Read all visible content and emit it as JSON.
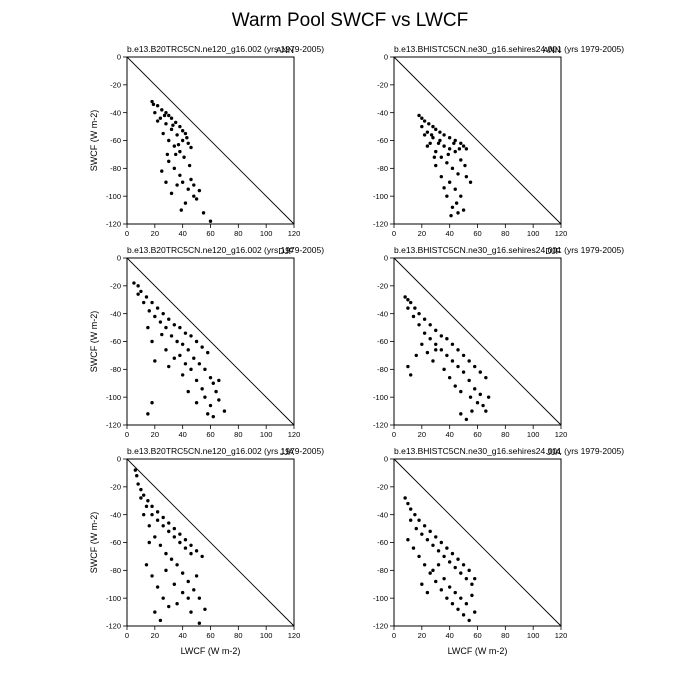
{
  "figure": {
    "title": "Warm Pool SWCF vs LWCF"
  },
  "chart_data": [
    {
      "type": "scatter",
      "title": "b.e13.B20TRC5CN.ne120_g16.002 (yrs 1979-2005)",
      "season": "ANN",
      "xlabel": "",
      "ylabel": "SWCF (W m-2)",
      "xlim": [
        0,
        120
      ],
      "ylim": [
        -120,
        0
      ],
      "xticks": [
        "0",
        "20",
        "40",
        "60",
        "80",
        "100",
        "120"
      ],
      "yticks": [
        "0",
        "-20",
        "-40",
        "-60",
        "-80",
        "-100",
        "-120"
      ],
      "reference_line": "y = -x",
      "points": [
        [
          18,
          -32
        ],
        [
          22,
          -35
        ],
        [
          25,
          -38
        ],
        [
          28,
          -40
        ],
        [
          30,
          -42
        ],
        [
          32,
          -44
        ],
        [
          35,
          -47
        ],
        [
          38,
          -50
        ],
        [
          40,
          -53
        ],
        [
          42,
          -55
        ],
        [
          20,
          -40
        ],
        [
          24,
          -44
        ],
        [
          28,
          -48
        ],
        [
          32,
          -52
        ],
        [
          36,
          -56
        ],
        [
          40,
          -60
        ],
        [
          44,
          -62
        ],
        [
          46,
          -65
        ],
        [
          26,
          -55
        ],
        [
          30,
          -60
        ],
        [
          34,
          -64
        ],
        [
          38,
          -68
        ],
        [
          30,
          -75
        ],
        [
          34,
          -80
        ],
        [
          38,
          -85
        ],
        [
          40,
          -90
        ],
        [
          44,
          -95
        ],
        [
          48,
          -100
        ],
        [
          36,
          -92
        ],
        [
          42,
          -105
        ],
        [
          32,
          -98
        ],
        [
          46,
          -88
        ],
        [
          50,
          -102
        ],
        [
          55,
          -112
        ],
        [
          60,
          -118
        ],
        [
          25,
          -82
        ],
        [
          28,
          -90
        ],
        [
          35,
          -70
        ],
        [
          45,
          -78
        ],
        [
          41,
          -72
        ],
        [
          22,
          -46
        ],
        [
          19,
          -34
        ],
        [
          27,
          -42
        ],
        [
          33,
          -49
        ],
        [
          43,
          -58
        ],
        [
          37,
          -63
        ],
        [
          29,
          -70
        ],
        [
          48,
          -92
        ],
        [
          52,
          -96
        ],
        [
          39,
          -110
        ]
      ]
    },
    {
      "type": "scatter",
      "title": "b.e13.BHISTC5CN.ne30_g16.sehires24.001 (yrs 1979-2005)",
      "season": "ANN",
      "xlabel": "",
      "ylabel": "",
      "xlim": [
        0,
        120
      ],
      "ylim": [
        -120,
        0
      ],
      "xticks": [
        "0",
        "20",
        "40",
        "60",
        "80",
        "100",
        "120"
      ],
      "yticks": [
        "0",
        "-20",
        "-40",
        "-60",
        "-80",
        "-100",
        "-120"
      ],
      "reference_line": "y = -x",
      "points": [
        [
          18,
          -42
        ],
        [
          20,
          -44
        ],
        [
          22,
          -46
        ],
        [
          25,
          -48
        ],
        [
          28,
          -50
        ],
        [
          30,
          -52
        ],
        [
          33,
          -54
        ],
        [
          36,
          -56
        ],
        [
          40,
          -58
        ],
        [
          44,
          -60
        ],
        [
          48,
          -62
        ],
        [
          50,
          -64
        ],
        [
          52,
          -66
        ],
        [
          20,
          -50
        ],
        [
          24,
          -54
        ],
        [
          28,
          -58
        ],
        [
          32,
          -62
        ],
        [
          36,
          -64
        ],
        [
          40,
          -66
        ],
        [
          44,
          -68
        ],
        [
          26,
          -62
        ],
        [
          30,
          -68
        ],
        [
          34,
          -72
        ],
        [
          38,
          -76
        ],
        [
          42,
          -80
        ],
        [
          46,
          -84
        ],
        [
          40,
          -90
        ],
        [
          44,
          -95
        ],
        [
          48,
          -100
        ],
        [
          42,
          -108
        ],
        [
          46,
          -112
        ],
        [
          50,
          -110
        ],
        [
          38,
          -100
        ],
        [
          34,
          -86
        ],
        [
          30,
          -78
        ],
        [
          24,
          -64
        ],
        [
          22,
          -56
        ],
        [
          48,
          -74
        ],
        [
          52,
          -86
        ],
        [
          55,
          -90
        ],
        [
          45,
          -105
        ],
        [
          41,
          -114
        ],
        [
          36,
          -94
        ],
        [
          29,
          -72
        ],
        [
          33,
          -60
        ],
        [
          47,
          -66
        ],
        [
          43,
          -62
        ],
        [
          27,
          -56
        ],
        [
          39,
          -70
        ],
        [
          51,
          -78
        ]
      ]
    },
    {
      "type": "scatter",
      "title": "b.e13.B20TRC5CN.ne120_g16.002 (yrs 1979-2005)",
      "season": "DJF",
      "xlabel": "",
      "ylabel": "SWCF (W m-2)",
      "xlim": [
        0,
        120
      ],
      "ylim": [
        -120,
        0
      ],
      "xticks": [
        "0",
        "20",
        "40",
        "60",
        "80",
        "100",
        "120"
      ],
      "yticks": [
        "0",
        "-20",
        "-40",
        "-60",
        "-80",
        "-100",
        "-120"
      ],
      "reference_line": "y = -x",
      "points": [
        [
          5,
          -18
        ],
        [
          8,
          -20
        ],
        [
          10,
          -24
        ],
        [
          14,
          -28
        ],
        [
          18,
          -32
        ],
        [
          22,
          -36
        ],
        [
          26,
          -40
        ],
        [
          30,
          -44
        ],
        [
          34,
          -48
        ],
        [
          38,
          -50
        ],
        [
          42,
          -54
        ],
        [
          46,
          -56
        ],
        [
          50,
          -60
        ],
        [
          54,
          -64
        ],
        [
          58,
          -68
        ],
        [
          8,
          -26
        ],
        [
          12,
          -32
        ],
        [
          16,
          -38
        ],
        [
          20,
          -42
        ],
        [
          24,
          -46
        ],
        [
          28,
          -50
        ],
        [
          32,
          -56
        ],
        [
          36,
          -60
        ],
        [
          40,
          -62
        ],
        [
          44,
          -66
        ],
        [
          48,
          -72
        ],
        [
          52,
          -76
        ],
        [
          56,
          -80
        ],
        [
          60,
          -86
        ],
        [
          62,
          -90
        ],
        [
          64,
          -96
        ],
        [
          66,
          -102
        ],
        [
          60,
          -106
        ],
        [
          58,
          -112
        ],
        [
          62,
          -114
        ],
        [
          56,
          -100
        ],
        [
          54,
          -94
        ],
        [
          50,
          -88
        ],
        [
          46,
          -80
        ],
        [
          42,
          -76
        ],
        [
          38,
          -70
        ],
        [
          15,
          -50
        ],
        [
          18,
          -60
        ],
        [
          20,
          -74
        ],
        [
          18,
          -104
        ],
        [
          15,
          -112
        ],
        [
          28,
          -66
        ],
        [
          34,
          -72
        ],
        [
          40,
          -84
        ],
        [
          44,
          -96
        ],
        [
          50,
          -104
        ],
        [
          30,
          -78
        ],
        [
          66,
          -88
        ],
        [
          70,
          -110
        ],
        [
          25,
          -55
        ]
      ]
    },
    {
      "type": "scatter",
      "title": "b.e13.BHISTC5CN.ne30_g16.sehires24.001 (yrs 1979-2005)",
      "season": "DJF",
      "xlabel": "",
      "ylabel": "",
      "xlim": [
        0,
        120
      ],
      "ylim": [
        -120,
        0
      ],
      "xticks": [
        "0",
        "20",
        "40",
        "60",
        "80",
        "100",
        "120"
      ],
      "yticks": [
        "0",
        "-20",
        "-40",
        "-60",
        "-80",
        "-100",
        "-120"
      ],
      "reference_line": "y = -x",
      "points": [
        [
          8,
          -28
        ],
        [
          10,
          -30
        ],
        [
          12,
          -32
        ],
        [
          15,
          -36
        ],
        [
          18,
          -40
        ],
        [
          22,
          -44
        ],
        [
          26,
          -48
        ],
        [
          30,
          -52
        ],
        [
          34,
          -56
        ],
        [
          38,
          -58
        ],
        [
          42,
          -62
        ],
        [
          46,
          -66
        ],
        [
          50,
          -70
        ],
        [
          54,
          -74
        ],
        [
          58,
          -78
        ],
        [
          62,
          -82
        ],
        [
          66,
          -86
        ],
        [
          10,
          -36
        ],
        [
          14,
          -42
        ],
        [
          18,
          -48
        ],
        [
          22,
          -54
        ],
        [
          26,
          -58
        ],
        [
          30,
          -62
        ],
        [
          34,
          -66
        ],
        [
          38,
          -70
        ],
        [
          42,
          -74
        ],
        [
          46,
          -78
        ],
        [
          50,
          -82
        ],
        [
          54,
          -88
        ],
        [
          58,
          -94
        ],
        [
          62,
          -98
        ],
        [
          60,
          -104
        ],
        [
          56,
          -110
        ],
        [
          52,
          -116
        ],
        [
          48,
          -112
        ],
        [
          55,
          -100
        ],
        [
          64,
          -106
        ],
        [
          68,
          -100
        ],
        [
          20,
          -62
        ],
        [
          16,
          -70
        ],
        [
          12,
          -84
        ],
        [
          10,
          -78
        ],
        [
          24,
          -68
        ],
        [
          28,
          -74
        ],
        [
          36,
          -80
        ],
        [
          40,
          -86
        ],
        [
          44,
          -92
        ],
        [
          48,
          -96
        ],
        [
          30,
          -66
        ],
        [
          66,
          -110
        ]
      ]
    },
    {
      "type": "scatter",
      "title": "b.e13.B20TRC5CN.ne120_g16.002 (yrs 1979-2005)",
      "season": "JJA",
      "xlabel": "LWCF (W m-2)",
      "ylabel": "SWCF (W m-2)",
      "xlim": [
        0,
        120
      ],
      "ylim": [
        -120,
        0
      ],
      "xticks": [
        "0",
        "20",
        "40",
        "60",
        "80",
        "100",
        "120"
      ],
      "yticks": [
        "0",
        "-20",
        "-40",
        "-60",
        "-80",
        "-100",
        "-120"
      ],
      "reference_line": "y = -x",
      "points": [
        [
          6,
          -8
        ],
        [
          7,
          -12
        ],
        [
          8,
          -18
        ],
        [
          10,
          -22
        ],
        [
          12,
          -26
        ],
        [
          15,
          -30
        ],
        [
          18,
          -34
        ],
        [
          22,
          -38
        ],
        [
          26,
          -42
        ],
        [
          30,
          -46
        ],
        [
          34,
          -50
        ],
        [
          38,
          -54
        ],
        [
          42,
          -58
        ],
        [
          46,
          -62
        ],
        [
          50,
          -66
        ],
        [
          54,
          -70
        ],
        [
          10,
          -28
        ],
        [
          14,
          -34
        ],
        [
          18,
          -40
        ],
        [
          22,
          -44
        ],
        [
          26,
          -48
        ],
        [
          30,
          -52
        ],
        [
          34,
          -56
        ],
        [
          38,
          -60
        ],
        [
          42,
          -64
        ],
        [
          46,
          -68
        ],
        [
          12,
          -40
        ],
        [
          16,
          -48
        ],
        [
          20,
          -56
        ],
        [
          24,
          -62
        ],
        [
          28,
          -68
        ],
        [
          32,
          -72
        ],
        [
          36,
          -76
        ],
        [
          40,
          -82
        ],
        [
          44,
          -88
        ],
        [
          48,
          -94
        ],
        [
          52,
          -100
        ],
        [
          56,
          -108
        ],
        [
          14,
          -76
        ],
        [
          18,
          -84
        ],
        [
          22,
          -92
        ],
        [
          26,
          -100
        ],
        [
          30,
          -106
        ],
        [
          20,
          -110
        ],
        [
          24,
          -116
        ],
        [
          36,
          -104
        ],
        [
          40,
          -96
        ],
        [
          46,
          -110
        ],
        [
          52,
          -118
        ],
        [
          16,
          -60
        ],
        [
          28,
          -80
        ],
        [
          34,
          -90
        ],
        [
          44,
          -100
        ],
        [
          50,
          -84
        ]
      ]
    },
    {
      "type": "scatter",
      "title": "b.e13.BHISTC5CN.ne30_g16.sehires24.001 (yrs 1979-2005)",
      "season": "JJA",
      "xlabel": "LWCF (W m-2)",
      "ylabel": "",
      "xlim": [
        0,
        120
      ],
      "ylim": [
        -120,
        0
      ],
      "xticks": [
        "0",
        "20",
        "40",
        "60",
        "80",
        "100",
        "120"
      ],
      "yticks": [
        "0",
        "-20",
        "-40",
        "-60",
        "-80",
        "-100",
        "-120"
      ],
      "reference_line": "y = -x",
      "points": [
        [
          8,
          -28
        ],
        [
          10,
          -32
        ],
        [
          12,
          -36
        ],
        [
          15,
          -40
        ],
        [
          18,
          -44
        ],
        [
          22,
          -48
        ],
        [
          26,
          -52
        ],
        [
          30,
          -56
        ],
        [
          34,
          -60
        ],
        [
          38,
          -64
        ],
        [
          42,
          -68
        ],
        [
          46,
          -72
        ],
        [
          50,
          -76
        ],
        [
          54,
          -80
        ],
        [
          58,
          -86
        ],
        [
          12,
          -44
        ],
        [
          16,
          -50
        ],
        [
          20,
          -54
        ],
        [
          24,
          -58
        ],
        [
          28,
          -62
        ],
        [
          32,
          -66
        ],
        [
          36,
          -70
        ],
        [
          40,
          -74
        ],
        [
          44,
          -78
        ],
        [
          48,
          -82
        ],
        [
          52,
          -86
        ],
        [
          56,
          -90
        ],
        [
          10,
          -58
        ],
        [
          14,
          -64
        ],
        [
          18,
          -70
        ],
        [
          22,
          -76
        ],
        [
          26,
          -82
        ],
        [
          30,
          -88
        ],
        [
          34,
          -94
        ],
        [
          38,
          -100
        ],
        [
          42,
          -104
        ],
        [
          46,
          -108
        ],
        [
          50,
          -112
        ],
        [
          54,
          -116
        ],
        [
          58,
          -110
        ],
        [
          36,
          -86
        ],
        [
          40,
          -92
        ],
        [
          44,
          -96
        ],
        [
          48,
          -100
        ],
        [
          52,
          -104
        ],
        [
          20,
          -90
        ],
        [
          24,
          -96
        ],
        [
          28,
          -80
        ],
        [
          32,
          -76
        ],
        [
          56,
          -98
        ]
      ]
    }
  ]
}
